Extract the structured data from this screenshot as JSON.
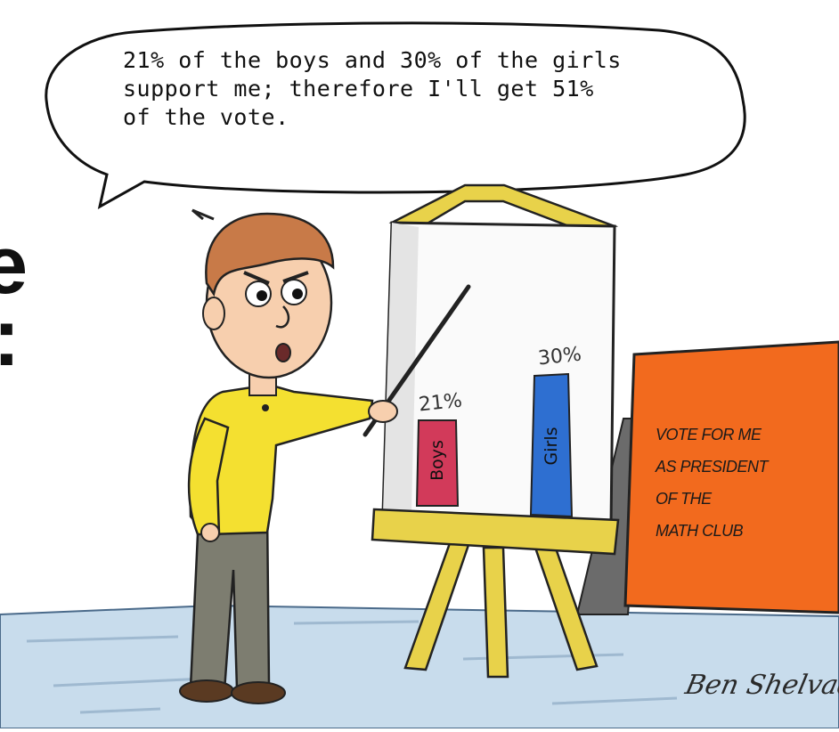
{
  "speech_bubble": {
    "lines": [
      "21% of the boys and 30% of the girls",
      "support me; therefore I'll get 51%",
      "of the vote."
    ]
  },
  "slide_fragments": {
    "letter": "e",
    "colon": ":"
  },
  "easel_chart": {
    "bars": [
      {
        "label": "Boys",
        "value_label": "21%",
        "value": 21,
        "color": "#d23a5a"
      },
      {
        "label": "Girls",
        "value_label": "30%",
        "value": 30,
        "color": "#2e6fd1"
      }
    ]
  },
  "campaign_sign": {
    "lines": [
      "VOTE FOR ME",
      "AS PRESIDENT",
      "OF THE",
      "MATH CLUB"
    ],
    "color": "#f26a1e"
  },
  "signature": "Ben Shelvad",
  "colors": {
    "shirt": "#f4e030",
    "hair": "#c87a48",
    "pants": "#7d7d70",
    "easel_wood": "#e8d24a",
    "floor": "#c8dcec"
  }
}
